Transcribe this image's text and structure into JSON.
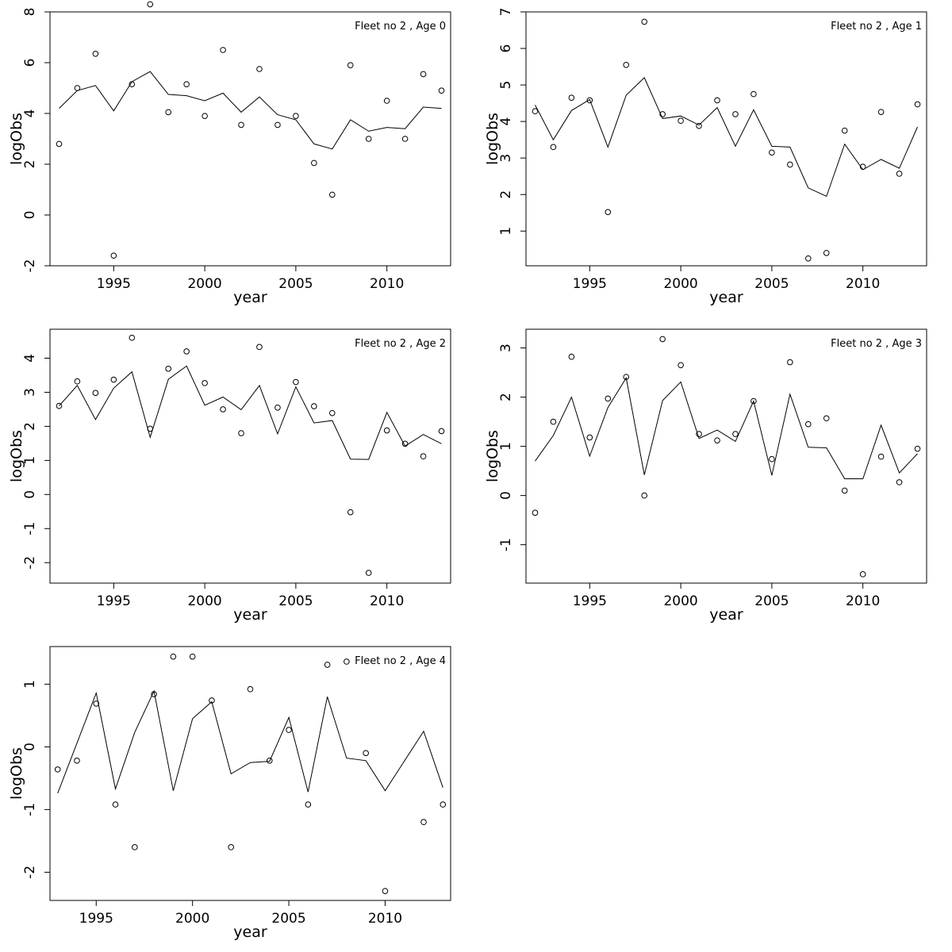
{
  "chart_data": [
    {
      "type": "scatter",
      "title": "Fleet no 2 , Age 0",
      "xlabel": "year",
      "ylabel": "logObs",
      "xlim": [
        1991.5,
        2013.5
      ],
      "ylim": [
        -2,
        8
      ],
      "xticks": [
        1995,
        2000,
        2005,
        2010
      ],
      "yticks": [
        -2,
        0,
        2,
        4,
        6,
        8
      ],
      "series": [
        {
          "kind": "points",
          "x": [
            1992,
            1993,
            1994,
            1995,
            1996,
            1997,
            1998,
            1999,
            2000,
            2001,
            2002,
            2003,
            2004,
            2005,
            2006,
            2007,
            2008,
            2009,
            2010,
            2011,
            2012,
            2013
          ],
          "y": [
            2.8,
            5.0,
            6.35,
            -1.6,
            5.15,
            8.3,
            4.05,
            5.15,
            3.9,
            6.5,
            3.55,
            5.75,
            3.55,
            3.9,
            2.05,
            0.8,
            5.9,
            3.0,
            4.5,
            3.0,
            5.55,
            4.9
          ]
        },
        {
          "kind": "line",
          "x": [
            1992,
            1993,
            1994,
            1995,
            1996,
            1997,
            1998,
            1999,
            2000,
            2001,
            2002,
            2003,
            2004,
            2005,
            2006,
            2007,
            2008,
            2009,
            2010,
            2011,
            2012,
            2013
          ],
          "y": [
            4.2,
            4.9,
            5.1,
            4.1,
            5.25,
            5.65,
            4.75,
            4.7,
            4.5,
            4.8,
            4.05,
            4.65,
            3.95,
            3.75,
            2.8,
            2.6,
            3.75,
            3.3,
            3.45,
            3.4,
            4.25,
            4.2
          ]
        }
      ]
    },
    {
      "type": "scatter",
      "title": "Fleet no 2 , Age 1",
      "xlabel": "year",
      "ylabel": "logObs",
      "xlim": [
        1991.5,
        2013.5
      ],
      "ylim": [
        0.05,
        7
      ],
      "xticks": [
        1995,
        2000,
        2005,
        2010
      ],
      "yticks": [
        1,
        2,
        3,
        4,
        5,
        6,
        7
      ],
      "series": [
        {
          "kind": "points",
          "x": [
            1992,
            1993,
            1994,
            1995,
            1996,
            1997,
            1998,
            1999,
            2000,
            2001,
            2002,
            2003,
            2004,
            2005,
            2006,
            2007,
            2008,
            2009,
            2010,
            2011,
            2012,
            2013
          ],
          "y": [
            4.28,
            3.3,
            4.65,
            4.58,
            1.52,
            5.55,
            6.73,
            4.2,
            4.02,
            3.88,
            4.58,
            4.2,
            4.75,
            3.15,
            2.82,
            0.25,
            0.4,
            3.75,
            2.76,
            4.26,
            2.57,
            4.47
          ]
        },
        {
          "kind": "line",
          "x": [
            1992,
            1993,
            1994,
            1995,
            1996,
            1997,
            1998,
            1999,
            2000,
            2001,
            2002,
            2003,
            2004,
            2005,
            2006,
            2007,
            2008,
            2009,
            2010,
            2011,
            2012,
            2013
          ],
          "y": [
            4.45,
            3.5,
            4.3,
            4.6,
            3.3,
            4.72,
            5.2,
            4.08,
            4.15,
            3.9,
            4.38,
            3.32,
            4.32,
            3.32,
            3.3,
            2.18,
            1.95,
            3.38,
            2.68,
            2.96,
            2.72,
            3.85
          ]
        }
      ]
    },
    {
      "type": "scatter",
      "title": "Fleet no 2 , Age 2",
      "xlabel": "year",
      "ylabel": "logObs",
      "xlim": [
        1991.5,
        2013.5
      ],
      "ylim": [
        -2.6,
        4.85
      ],
      "xticks": [
        1995,
        2000,
        2005,
        2010
      ],
      "yticks": [
        -2,
        -1,
        0,
        1,
        2,
        3,
        4
      ],
      "series": [
        {
          "kind": "points",
          "x": [
            1992,
            1993,
            1994,
            1995,
            1996,
            1997,
            1998,
            1999,
            2000,
            2001,
            2002,
            2003,
            2004,
            2005,
            2006,
            2007,
            2008,
            2009,
            2010,
            2011,
            2012,
            2013
          ],
          "y": [
            2.6,
            3.32,
            2.98,
            3.37,
            4.6,
            1.93,
            3.69,
            4.2,
            3.27,
            2.5,
            1.8,
            4.33,
            2.55,
            3.3,
            2.59,
            2.39,
            -0.52,
            -2.3,
            1.88,
            1.49,
            1.12,
            1.86
          ]
        },
        {
          "kind": "line",
          "x": [
            1992,
            1993,
            1994,
            1995,
            1996,
            1997,
            1998,
            1999,
            2000,
            2001,
            2002,
            2003,
            2004,
            2005,
            2006,
            2007,
            2008,
            2009,
            2010,
            2011,
            2012,
            2013
          ],
          "y": [
            2.6,
            3.2,
            2.2,
            3.12,
            3.6,
            1.68,
            3.38,
            3.77,
            2.62,
            2.86,
            2.49,
            3.2,
            1.78,
            3.16,
            2.1,
            2.17,
            1.04,
            1.03,
            2.41,
            1.42,
            1.76,
            1.49
          ]
        }
      ]
    },
    {
      "type": "scatter",
      "title": "Fleet no 2 , Age 3",
      "xlabel": "year",
      "ylabel": "logObs",
      "xlim": [
        1991.5,
        2013.5
      ],
      "ylim": [
        -1.78,
        3.38
      ],
      "xticks": [
        1995,
        2000,
        2005,
        2010
      ],
      "yticks": [
        -1,
        0,
        1,
        2,
        3
      ],
      "series": [
        {
          "kind": "points",
          "x": [
            1992,
            1993,
            1994,
            1995,
            1996,
            1997,
            1998,
            1999,
            2000,
            2001,
            2002,
            2003,
            2004,
            2005,
            2006,
            2007,
            2008,
            2009,
            2010,
            2011,
            2012,
            2013
          ],
          "y": [
            -0.35,
            1.5,
            2.82,
            1.18,
            1.97,
            2.41,
            0.0,
            3.18,
            2.65,
            1.25,
            1.12,
            1.25,
            1.92,
            0.74,
            2.71,
            1.45,
            1.57,
            0.1,
            -1.6,
            0.79,
            0.27,
            0.95
          ]
        },
        {
          "kind": "line",
          "x": [
            1992,
            1993,
            1994,
            1995,
            1996,
            1997,
            1998,
            1999,
            2000,
            2001,
            2002,
            2003,
            2004,
            2005,
            2006,
            2007,
            2008,
            2009,
            2010,
            2011,
            2012,
            2013
          ],
          "y": [
            0.7,
            1.22,
            2.0,
            0.8,
            1.79,
            2.39,
            0.42,
            1.93,
            2.31,
            1.16,
            1.33,
            1.1,
            1.92,
            0.41,
            2.06,
            0.98,
            0.97,
            0.34,
            0.34,
            1.43,
            0.46,
            0.85
          ]
        }
      ]
    },
    {
      "type": "scatter",
      "title": "Fleet no 2 , Age 4",
      "xlabel": "year",
      "ylabel": "logObs",
      "xlim": [
        1992.6,
        2013.4
      ],
      "ylim": [
        -2.45,
        1.6
      ],
      "xticks": [
        1995,
        2000,
        2005,
        2010
      ],
      "yticks": [
        -2,
        -1,
        0,
        1
      ],
      "series": [
        {
          "kind": "points",
          "x": [
            1993,
            1994,
            1995,
            1996,
            1997,
            1998,
            1999,
            2000,
            2001,
            2002,
            2003,
            2004,
            2005,
            2006,
            2007,
            2008,
            2009,
            2010,
            2012,
            2013
          ],
          "y": [
            -0.36,
            -0.22,
            0.69,
            -0.92,
            -1.6,
            0.84,
            1.44,
            1.44,
            0.74,
            -1.6,
            0.92,
            -0.22,
            0.27,
            -0.92,
            1.31,
            1.36,
            -0.1,
            -2.3,
            -1.2,
            -0.92
          ]
        },
        {
          "kind": "line",
          "x": [
            1993,
            1995,
            1996,
            1997,
            1998,
            1999,
            2000,
            2001,
            2002,
            2003,
            2004,
            2005,
            2006,
            2007,
            2008,
            2009,
            2010,
            2012,
            2013
          ],
          "y": [
            -0.74,
            0.86,
            -0.67,
            0.23,
            0.89,
            -0.7,
            0.45,
            0.72,
            -0.43,
            -0.25,
            -0.23,
            0.47,
            -0.72,
            0.8,
            -0.18,
            -0.22,
            -0.7,
            0.25,
            -0.65
          ]
        }
      ]
    }
  ]
}
